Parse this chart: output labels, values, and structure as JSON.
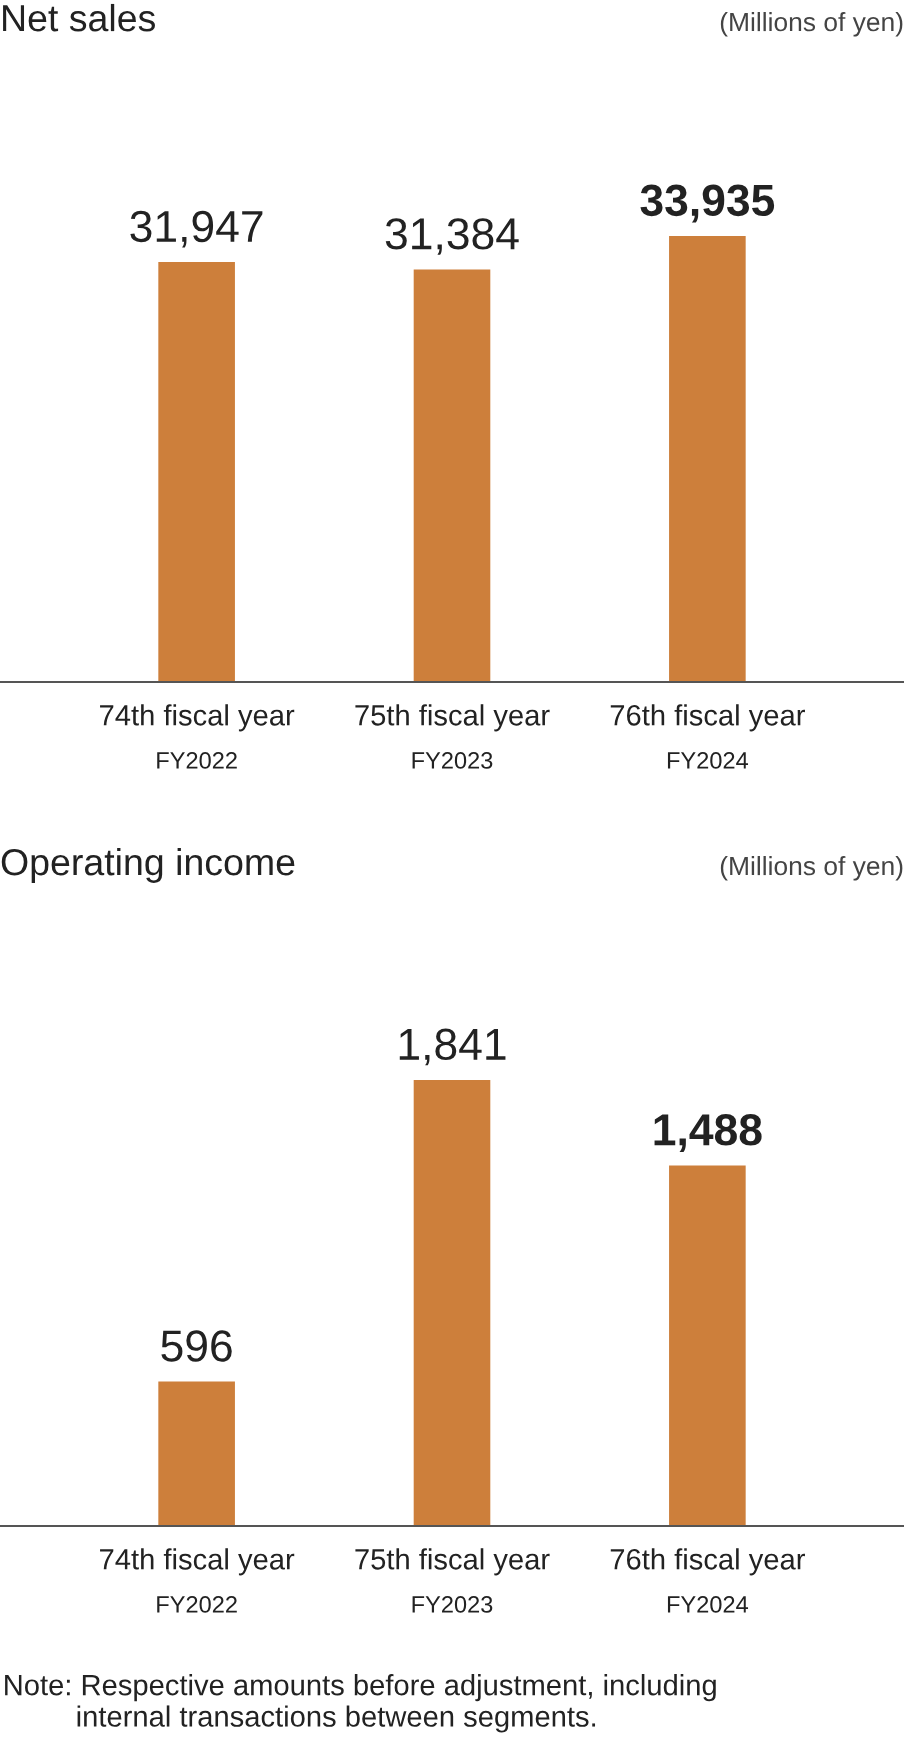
{
  "chart_data": [
    {
      "type": "bar",
      "title": "Net sales",
      "subtitle": "(Millions of yen)",
      "categories": [
        "74th fiscal year\nFY2022",
        "75th fiscal year\nFY2023",
        "76th fiscal year\nFY2024"
      ],
      "values": [
        31947,
        31384,
        33935
      ],
      "value_labels": [
        "31,947",
        "31,384",
        "33,935"
      ],
      "color": "#cd7f3b"
    },
    {
      "type": "bar",
      "title": "Operating income",
      "subtitle": "(Millions of yen)",
      "categories": [
        "74th fiscal year\nFY2022",
        "75th fiscal year\nFY2023",
        "76th fiscal year\nFY2024"
      ],
      "values": [
        596,
        1841,
        1488
      ],
      "value_labels": [
        "596",
        "1,841",
        "1,488"
      ],
      "color": "#cd7f3b",
      "annotations": [
        "Note: Respective amounts before adjustment, including\n         internal transactions between segments."
      ]
    }
  ]
}
